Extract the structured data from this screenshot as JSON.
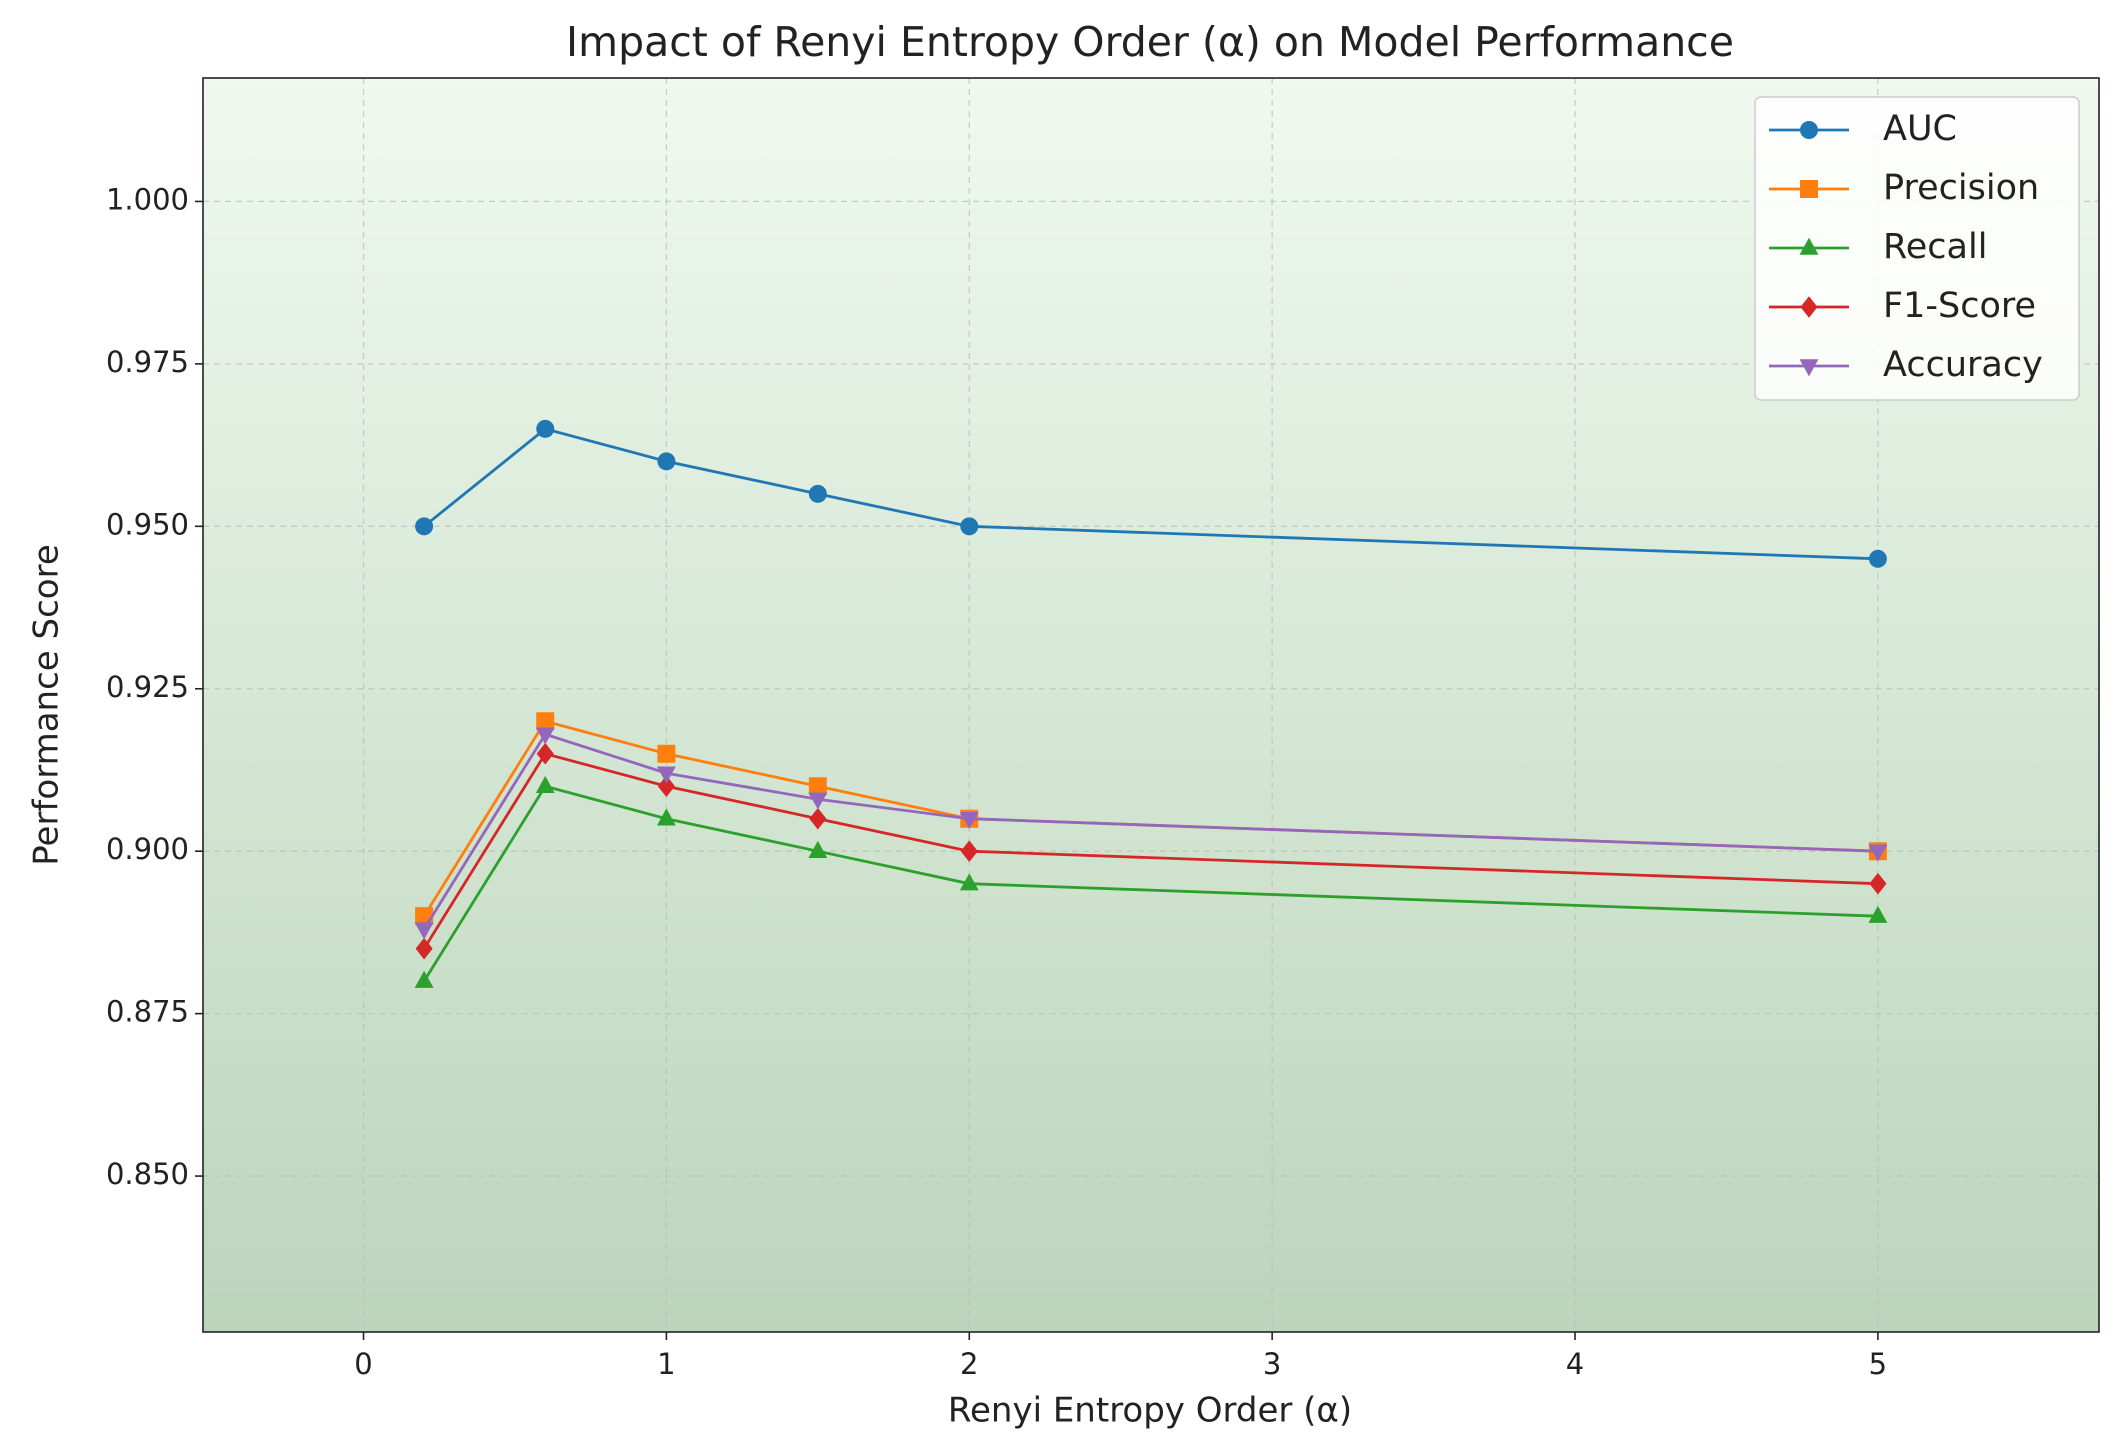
{
  "chart_data": {
    "type": "line",
    "title": "Impact of Renyi Entropy Order (α) on Model Performance",
    "xlabel": "Renyi Entropy Order (α)",
    "ylabel": "Performance Score",
    "x": [
      0.2,
      0.6,
      1,
      1.5,
      2,
      5
    ],
    "series": [
      {
        "name": "AUC",
        "color": "#1f77b4",
        "marker": "circle",
        "values": [
          0.95,
          0.965,
          0.96,
          0.955,
          0.95,
          0.945
        ]
      },
      {
        "name": "Precision",
        "color": "#ff7f0e",
        "marker": "square",
        "values": [
          0.89,
          0.92,
          0.915,
          0.91,
          0.905,
          0.9
        ]
      },
      {
        "name": "Recall",
        "color": "#2ca02c",
        "marker": "triangle-up",
        "values": [
          0.88,
          0.91,
          0.905,
          0.9,
          0.895,
          0.89
        ]
      },
      {
        "name": "F1-Score",
        "color": "#d62728",
        "marker": "diamond",
        "values": [
          0.885,
          0.915,
          0.91,
          0.905,
          0.9,
          0.895
        ]
      },
      {
        "name": "Accuracy",
        "color": "#9467bd",
        "marker": "triangle-down",
        "values": [
          0.888,
          0.918,
          0.912,
          0.908,
          0.905,
          0.9
        ]
      }
    ],
    "xlim": [
      -0.53,
      5.73
    ],
    "xticks": [
      0,
      1,
      2,
      3,
      4,
      5
    ],
    "ylim": [
      0.826,
      1.019
    ],
    "yticks": [
      {
        "value": 0.85,
        "label": "0.850"
      },
      0.875,
      {
        "value": 0.9,
        "label": "0.900"
      },
      0.925,
      {
        "value": 0.95,
        "label": "0.950"
      },
      0.975,
      {
        "value": 1,
        "label": "1.000"
      }
    ],
    "grid": true,
    "legend": "upper right"
  }
}
